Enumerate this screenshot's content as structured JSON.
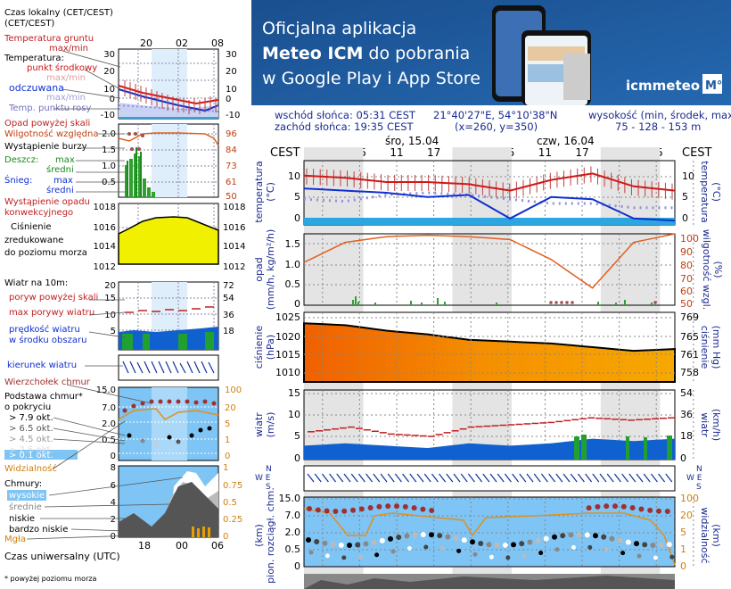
{
  "legend": {
    "local_time": "Czas lokalny\n(CET/CEST)",
    "local_hours": [
      "20",
      "02",
      "08"
    ],
    "ground_temp": "Temperatura gruntu",
    "ground_temp_unit": "max/min",
    "temperature": "Temperatura:",
    "mid_point": "punkt środkowy",
    "max_min_1": "max/min",
    "felt": "odczuwana",
    "max_min_2": "max/min",
    "dew": "Temp. punktu rosy",
    "temp_ticks_left": [
      "30",
      "20",
      "10",
      "0",
      "-10"
    ],
    "temp_ticks_right": [
      "30",
      "20",
      "10",
      "0",
      "-10"
    ],
    "rain_over": "Opad powyżej skali",
    "humidity": "Wilgotność względna",
    "storm": "Wystąpienie burzy",
    "rain": "Deszcz:",
    "max": "max",
    "avg": "średni",
    "snow": "Śnieg:",
    "snow_max": "max",
    "snow_avg": "średni",
    "conv": "Wystąpienie opadu\nkonwekcyjnego",
    "precip_ticks_left": [
      "2.0",
      "1.5",
      "1.0",
      "0.5"
    ],
    "precip_ticks_right": [
      "96",
      "84",
      "73",
      "61",
      "50"
    ],
    "pressure": "Ciśnienie\nzredukowane\ndo poziomu morza",
    "pressure_ticks_left": [
      "1018",
      "1016",
      "1014",
      "1012"
    ],
    "pressure_ticks_right": [
      "1018",
      "1016",
      "1014",
      "1012"
    ],
    "wind_10m": "Wiatr na 10m:",
    "gust_over": "poryw powyżej skali",
    "gust_max": "max porywy wiatru",
    "wind_speed": "prędkość wiatru\nw środku obszaru",
    "wind_ticks_left": [
      "20",
      "15",
      "10",
      "5"
    ],
    "wind_ticks_right": [
      "72",
      "54",
      "36",
      "18"
    ],
    "wind_dir": "kierunek wiatru",
    "cloud_top": "Wierzchołek chmur",
    "cloud_base": "Podstawa chmur*\no pokryciu",
    "okt": [
      "> 7.9 okt.",
      "> 6.5 okt.",
      "> 4.5 okt.",
      "> 2.5 okt.",
      "> 0.1 okt."
    ],
    "cb_ticks_left": [
      "15.0",
      "7.0",
      "2.0",
      "0.5",
      "0"
    ],
    "cb_ticks_right": [
      "100",
      "20",
      "5",
      "1",
      "0"
    ],
    "visibility": "Widzialność",
    "clouds": "Chmury:",
    "high": "wysokie",
    "mid": "średnie",
    "low": "niskie",
    "very_low": "bardzo niskie",
    "fog": "Mgła",
    "cl_ticks_left": [
      "8",
      "6",
      "4",
      "2",
      "0"
    ],
    "cl_ticks_right": [
      "1",
      "0.75",
      "0.5",
      "0.25",
      "0"
    ],
    "utc": "Czas uniwersalny (UTC)",
    "utc_hours": [
      "18",
      "00",
      "06"
    ],
    "footnote": "* powyżej poziomu morza"
  },
  "banner": {
    "line1": "Oficjalna aplikacja",
    "line2_bold": "Meteo ICM",
    "line2_rest": " do pobrania",
    "line3": "w Google Play i App Store",
    "brand": "icmmeteo",
    "brand_badge": "M°",
    "bg_color": "#1f5a9c"
  },
  "header": {
    "sunrise": "wschód słońca: 05:31 CEST",
    "sunset": "zachód słońca: 19:35 CEST",
    "coords": "21°40'27\"E, 54°10'38\"N",
    "grid": "(x=260, y=350)",
    "elev_label": "wysokość (min, środek, max)",
    "elev_values": "75 - 128 - 153 m",
    "cest": "CEST",
    "day1": "śro, 15.04",
    "day2": "czw, 16.04",
    "hours": [
      "23",
      "05",
      "11",
      "17",
      "23",
      "05",
      "11",
      "17",
      "23",
      "05"
    ]
  },
  "panels": {
    "temp": {
      "left": "temperatura\n(°C)",
      "right": "(°C)\ntemperatura",
      "ticks": [
        "10",
        "5",
        "0"
      ]
    },
    "precip": {
      "left": "opad\n(mm/h, kg/m²/h)",
      "right": "(%)\nwilgotność wzgl.",
      "ticks_left": [
        "1.5",
        "1.0",
        "0.5",
        "0"
      ],
      "ticks_right": [
        "100",
        "90",
        "80",
        "70",
        "60",
        "50"
      ]
    },
    "press": {
      "left": "ciśnienie\n(hPa)",
      "right": "(mm Hg)\nciśnienie",
      "ticks_left": [
        "1025",
        "1020",
        "1015",
        "1010"
      ],
      "ticks_right": [
        "769",
        "765",
        "761",
        "758"
      ]
    },
    "wind": {
      "left": "wiatr\n(m/s)",
      "right": "(km/h)\nwiatr",
      "ticks_left": [
        "15",
        "10",
        "5",
        "0"
      ],
      "ticks_right": [
        "54",
        "36",
        "18",
        "0"
      ]
    },
    "dir": {
      "right_top": "N",
      "right_we": "W  E",
      "right_s": "S"
    },
    "cloud": {
      "left": "(km)\npion. rozciągł. chm.",
      "right": "(km)\nwidzialność",
      "ticks_left": [
        "15.0",
        "7.0",
        "2.0",
        "0.5",
        "0"
      ],
      "ticks_right": [
        "100",
        "20",
        "5",
        "1",
        "0"
      ]
    }
  },
  "colors": {
    "temp_mid": "#d01818",
    "felt": "#1030d0",
    "dew": "#9090e0",
    "humidity": "#e06020",
    "rain": "#30a030",
    "pressure_fill": "#f59000",
    "wind_fill": "#1060d0",
    "visibility": "#e09020",
    "cloud_bg": "#7ec4f4"
  },
  "chart_data": [
    {
      "type": "line",
      "title": "temperatura",
      "x": [
        "23",
        "05",
        "11",
        "17",
        "23",
        "05",
        "11",
        "17",
        "23",
        "05"
      ],
      "ylabel": "temperatura (°C)",
      "ylim": [
        -1,
        14
      ],
      "series": [
        {
          "name": "punkt środkowy",
          "values": [
            10.5,
            10,
            9,
            9,
            8.5,
            7,
            9.5,
            11,
            8,
            7
          ]
        },
        {
          "name": "odczuwana",
          "values": [
            7.5,
            7,
            6.5,
            5.5,
            6,
            0.5,
            5.5,
            5,
            0.5,
            0
          ]
        },
        {
          "name": "Temp. punktu rosy",
          "values": [
            5,
            4.5,
            6,
            6.5,
            6,
            5,
            4,
            4,
            3,
            3
          ]
        }
      ]
    },
    {
      "type": "line",
      "title": "wilgotność wzgl.",
      "ylabel": "(%)",
      "ylim": [
        50,
        100
      ],
      "series": [
        {
          "name": "Wilgotność względna",
          "values": [
            80,
            94,
            98,
            99,
            98,
            96,
            82,
            62,
            94,
            100
          ]
        }
      ]
    },
    {
      "type": "area",
      "title": "ciśnienie",
      "ylabel": "(hPa)",
      "ylim": [
        1008,
        1027
      ],
      "series": [
        {
          "name": "Ciśnienie",
          "values": [
            1024,
            1023.5,
            1022,
            1021,
            1019.5,
            1019,
            1018.5,
            1017.5,
            1016.5,
            1017
          ]
        }
      ]
    },
    {
      "type": "area",
      "title": "wiatr",
      "ylabel": "(m/s)",
      "ylim": [
        0,
        15
      ],
      "series": [
        {
          "name": "prędkość wiatru",
          "values": [
            3,
            3.5,
            3,
            2.5,
            3.5,
            3,
            3.5,
            4.5,
            4,
            4.5
          ]
        },
        {
          "name": "max porywy wiatru",
          "values": [
            6,
            7,
            5.5,
            5,
            7,
            7.5,
            8,
            9,
            8.5,
            9
          ]
        }
      ]
    }
  ]
}
